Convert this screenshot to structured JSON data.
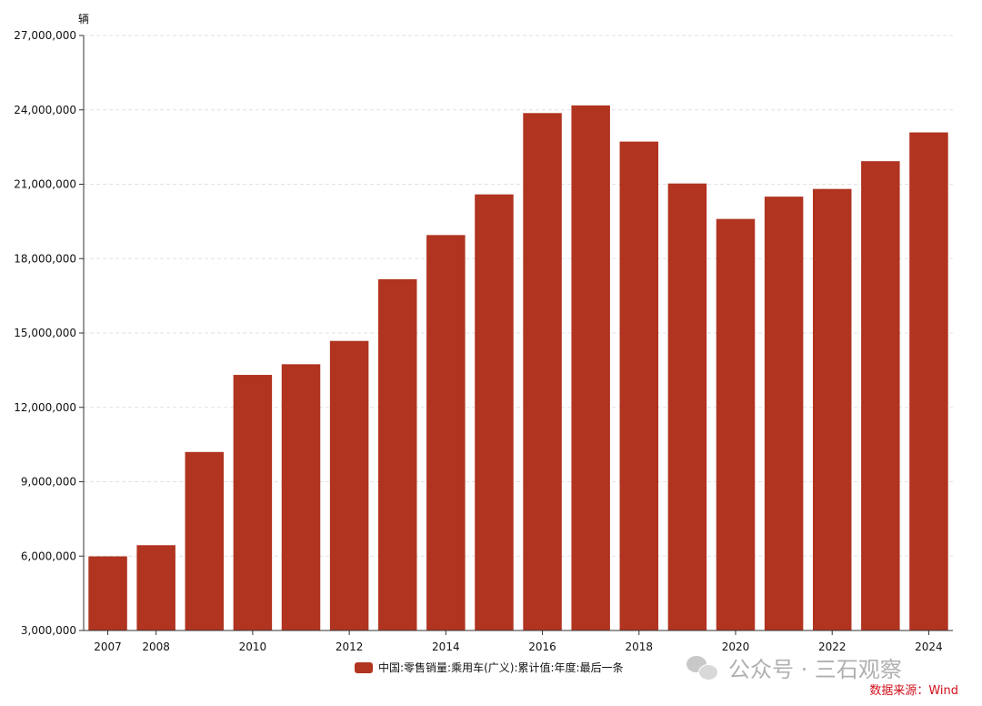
{
  "chart_data": {
    "type": "bar",
    "unit": "辆",
    "categories": [
      "2007",
      "2008",
      "2009",
      "2010",
      "2011",
      "2012",
      "2013",
      "2014",
      "2015",
      "2016",
      "2017",
      "2018",
      "2019",
      "2020",
      "2021",
      "2022",
      "2023",
      "2024"
    ],
    "x_tick_labels": [
      "2007",
      "2008",
      "2010",
      "2012",
      "2014",
      "2016",
      "2018",
      "2020",
      "2022",
      "2024"
    ],
    "series": [
      {
        "name": "中国:零售销量:乘用车(广义):累计值:年度:最后一条",
        "color": "#b03420",
        "values": [
          5990000,
          6440000,
          10200000,
          13310000,
          13740000,
          14680000,
          17170000,
          18950000,
          20590000,
          23870000,
          24180000,
          22720000,
          21030000,
          19600000,
          20500000,
          20810000,
          21930000,
          23090000
        ]
      }
    ],
    "ylim": [
      3000000,
      27000000
    ],
    "y_ticks": [
      3000000,
      6000000,
      9000000,
      12000000,
      15000000,
      18000000,
      21000000,
      24000000,
      27000000
    ],
    "grid": true,
    "legend_position": "bottom"
  },
  "watermark": "公众号 · 三石观察",
  "source": "数据来源：Wind"
}
